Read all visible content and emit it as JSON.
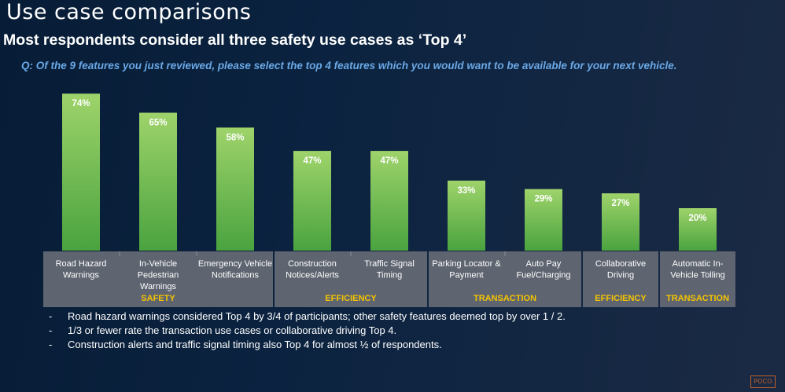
{
  "title": "Use case comparisons",
  "subtitle": "Most respondents consider all three safety use cases as ‘Top 4’",
  "question": "Q: Of the 9 features you just reviewed, please select the top 4 features which you would want to be available for your next vehicle.",
  "colors": {
    "bar_top": "#9ed36a",
    "bar_bottom": "#4aa33f",
    "group_box": "#5e6470",
    "label_text": "#ffffff",
    "group_label": "#f5c400",
    "question": "#6aa8e6"
  },
  "chart_data": {
    "type": "bar",
    "title": "",
    "xlabel": "",
    "ylabel": "",
    "ylim": [
      0,
      80
    ],
    "categories": [
      "Road Hazard Warnings",
      "In-Vehicle Pedestrian Warnings",
      "Emergency Vehicle Notifications",
      "Construction Notices/Alerts",
      "Traffic Signal Timing",
      "Parking Locator & Payment",
      "Auto Pay Fuel/Charging",
      "Collaborative Driving",
      "Automatic In-Vehicle Tolling"
    ],
    "category_lines": [
      [
        "Road Hazard",
        "Warnings"
      ],
      [
        "In-Vehicle",
        "Pedestrian",
        "Warnings"
      ],
      [
        "Emergency Vehicle",
        "Notifications"
      ],
      [
        "Construction",
        "Notices/Alerts"
      ],
      [
        "Traffic Signal",
        "Timing"
      ],
      [
        "Parking Locator &",
        "Payment"
      ],
      [
        "Auto Pay",
        "Fuel/Charging"
      ],
      [
        "Collaborative",
        "Driving"
      ],
      [
        "Automatic In-",
        "Vehicle Tolling"
      ]
    ],
    "values": [
      74,
      65,
      58,
      47,
      47,
      33,
      29,
      27,
      20
    ],
    "data_labels": [
      "74%",
      "65%",
      "58%",
      "47%",
      "47%",
      "33%",
      "29%",
      "27%",
      "20%"
    ],
    "groups": [
      {
        "label": "SAFETY",
        "members": [
          0,
          1,
          2
        ]
      },
      {
        "label": "EFFICIENCY",
        "members": [
          3,
          4
        ]
      },
      {
        "label": "TRANSACTION",
        "members": [
          5,
          6
        ]
      },
      {
        "label": "EFFICIENCY",
        "members": [
          7
        ]
      },
      {
        "label": "TRANSACTION",
        "members": [
          8
        ]
      }
    ]
  },
  "bullets": [
    "Road hazard warnings considered Top 4 by 3/4 of participants; other safety features deemed top by over 1 / 2.",
    "1/3 or fewer rate the transaction use cases or collaborative driving Top 4.",
    "Construction alerts and traffic signal timing also Top 4 for almost ½ of respondents."
  ],
  "logo_text": "POCO"
}
